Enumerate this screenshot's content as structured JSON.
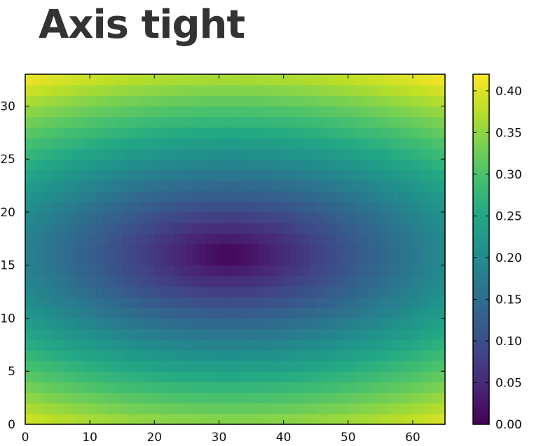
{
  "title": "Axis tight",
  "chart_data": {
    "type": "heatmap",
    "title": "Axis tight",
    "xlabel": "",
    "ylabel": "",
    "colormap": "viridis",
    "grid_shape": [
      33,
      65
    ],
    "xlim": [
      0,
      65
    ],
    "ylim": [
      0,
      33
    ],
    "x_ticks": [
      "0",
      "10",
      "20",
      "30",
      "40",
      "50",
      "60"
    ],
    "y_ticks": [
      "0",
      "5",
      "10",
      "15",
      "20",
      "25",
      "30"
    ],
    "colorbar": {
      "range": [
        0.0,
        0.42
      ],
      "ticks": [
        "0.00",
        "0.05",
        "0.10",
        "0.15",
        "0.20",
        "0.25",
        "0.30",
        "0.35",
        "0.40"
      ]
    },
    "description_of_values": "value ≈ distance from center (32, 16.5) normalized: 0.00 at center, ~0.41 at corners",
    "center_min": 0.0,
    "corner_max": 0.41,
    "edge_mid_x_left_right": 0.19,
    "edge_mid_y_top_bottom": 0.36
  }
}
